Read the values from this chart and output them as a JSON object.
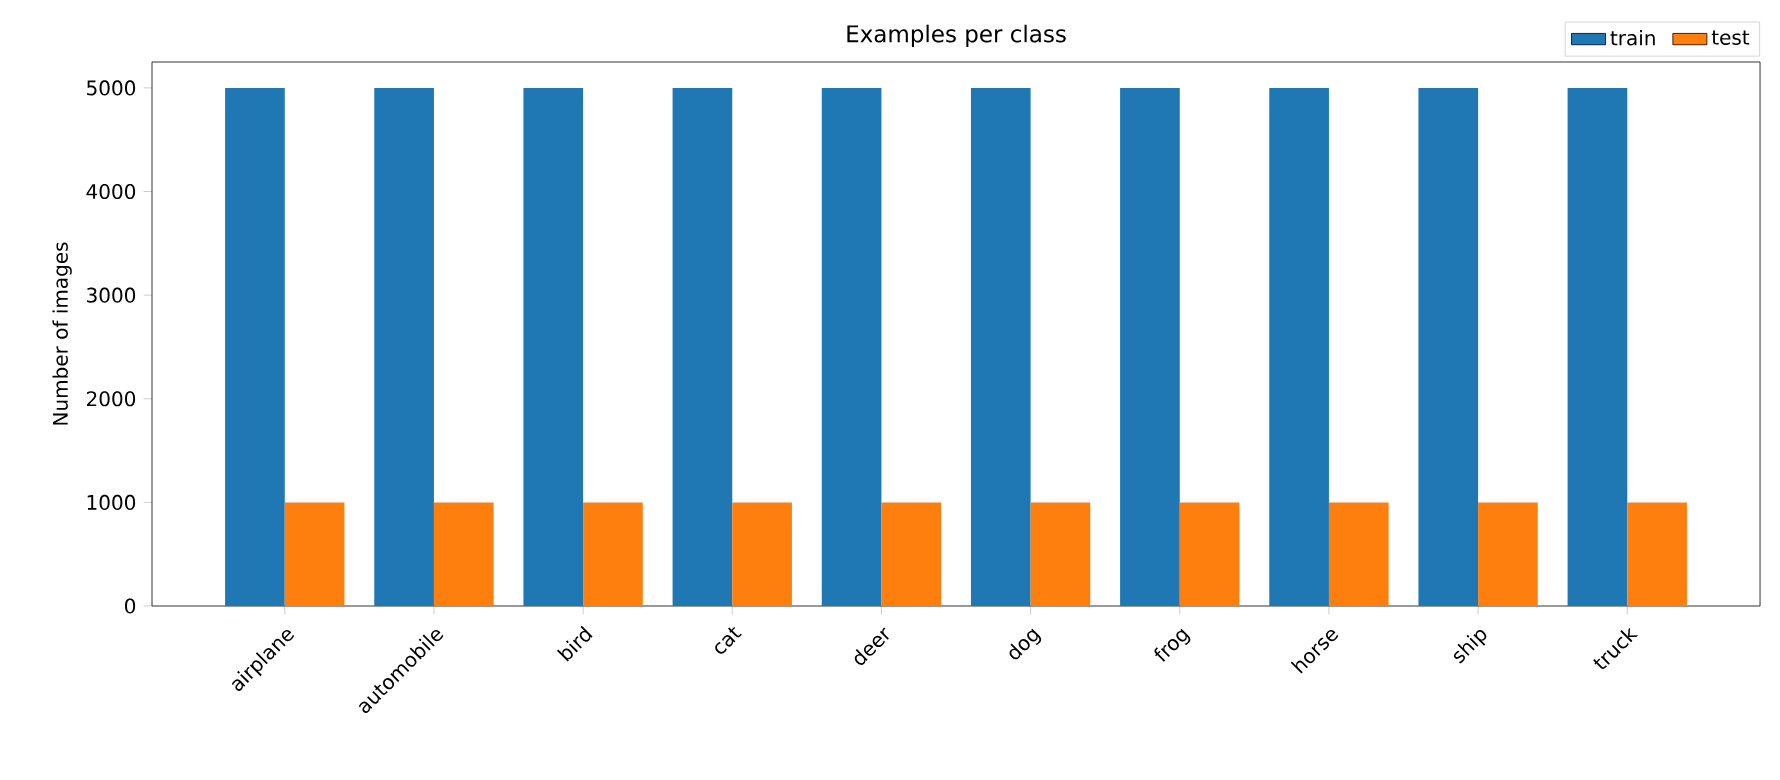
{
  "chart_data": {
    "type": "bar",
    "title": "Examples per class",
    "ylabel": "Number of images",
    "categories": [
      "airplane",
      "automobile",
      "bird",
      "cat",
      "deer",
      "dog",
      "frog",
      "horse",
      "ship",
      "truck"
    ],
    "series": [
      {
        "name": "train",
        "color": "#1f77b4",
        "values": [
          5000,
          5000,
          5000,
          5000,
          5000,
          5000,
          5000,
          5000,
          5000,
          5000
        ]
      },
      {
        "name": "test",
        "color": "#ff7f0e",
        "values": [
          1000,
          1000,
          1000,
          1000,
          1000,
          1000,
          1000,
          1000,
          1000,
          1000
        ]
      }
    ],
    "ylim": [
      0,
      5250
    ],
    "yticks": [
      0,
      1000,
      2000,
      3000,
      4000,
      5000
    ],
    "legend": "top right"
  }
}
